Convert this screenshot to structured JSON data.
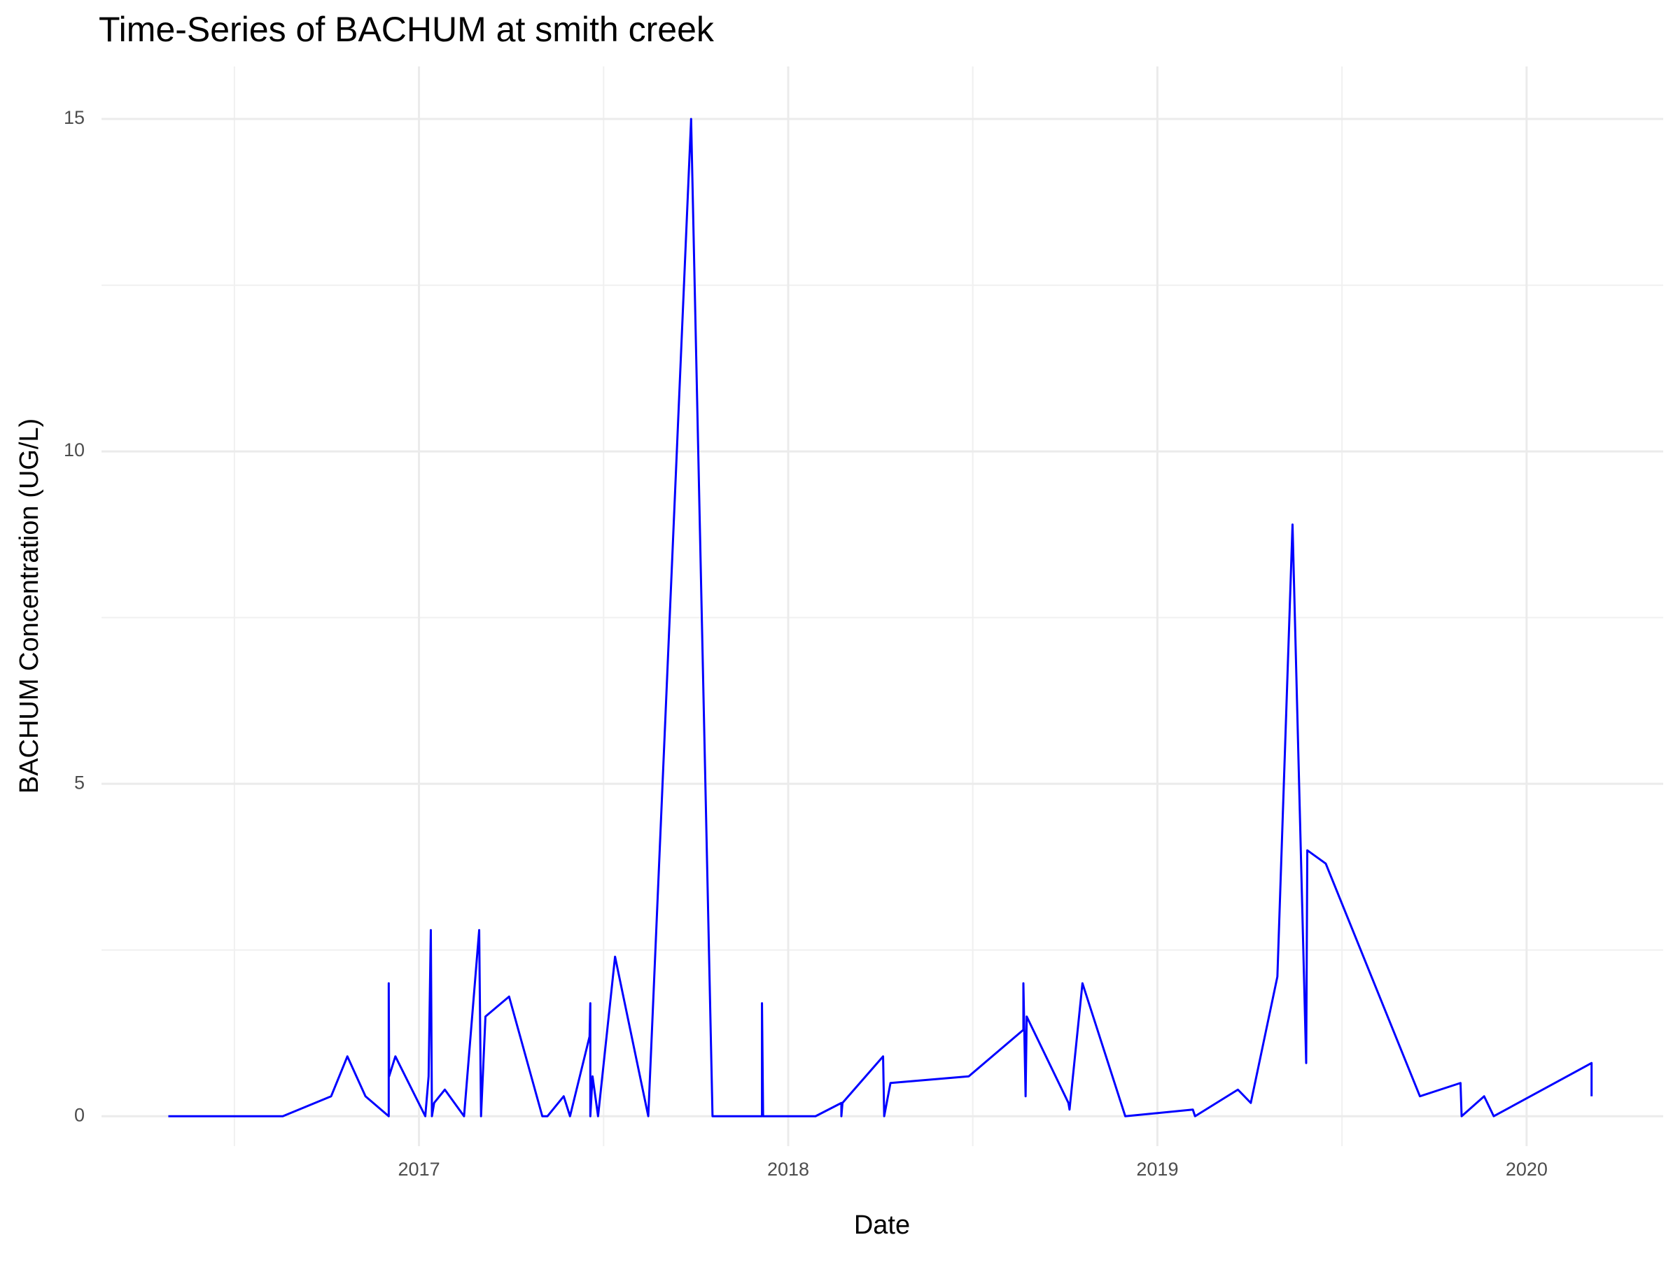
{
  "chart_data": {
    "type": "line",
    "title": "Time-Series of BACHUM at smith creek",
    "x_label": "Date",
    "y_label": "BACHUM Concentration (UG/L)",
    "grid": true,
    "xlim": [
      2016.14,
      2020.37
    ],
    "ylim": [
      -0.45,
      15.79
    ],
    "xticks": [
      2017,
      2018,
      2019,
      2020
    ],
    "yticks": [
      0,
      5,
      10,
      15
    ],
    "series": [
      {
        "name": "BACHUM",
        "color": "#0000ff",
        "x": [
          2016.321,
          2016.631,
          2016.762,
          2016.806,
          2016.855,
          2016.918,
          2016.918,
          2016.919,
          2016.936,
          2017.017,
          2017.026,
          2017.032,
          2017.035,
          2017.041,
          2017.07,
          2017.122,
          2017.163,
          2017.168,
          2017.18,
          2017.244,
          2017.334,
          2017.348,
          2017.392,
          2017.409,
          2017.462,
          2017.464,
          2017.464,
          2017.47,
          2017.485,
          2017.531,
          2017.621,
          2017.737,
          2017.795,
          2017.929,
          2017.929,
          2017.932,
          2018.074,
          2018.144,
          2018.144,
          2018.147,
          2018.257,
          2018.26,
          2018.277,
          2018.489,
          2018.637,
          2018.637,
          2018.643,
          2018.646,
          2018.759,
          2018.762,
          2018.797,
          2018.913,
          2019.096,
          2019.102,
          2019.218,
          2019.253,
          2019.325,
          2019.366,
          2019.403,
          2019.406,
          2019.456,
          2019.711,
          2019.821,
          2019.824,
          2019.885,
          2019.911,
          2020.176,
          2020.176
        ],
        "values": [
          0,
          0,
          0.3,
          0.9,
          0.3,
          0,
          2.0,
          0.6,
          0.9,
          0,
          0.6,
          2.8,
          0,
          0.2,
          0.4,
          0,
          2.8,
          0,
          1.5,
          1.8,
          0,
          0,
          0.3,
          0,
          1.2,
          1.7,
          0,
          0.6,
          0,
          2.4,
          0,
          15,
          0,
          0,
          1.7,
          0,
          0,
          0.2,
          0,
          0.2,
          0.9,
          0,
          0.5,
          0.6,
          1.3,
          2.0,
          0.3,
          1.5,
          0.2,
          0.1,
          2.0,
          0,
          0.1,
          0,
          0.4,
          0.2,
          2.1,
          8.9,
          0.8,
          4.0,
          3.8,
          0.3,
          0.5,
          0,
          0.3,
          0,
          0.8,
          0.3
        ]
      }
    ]
  }
}
